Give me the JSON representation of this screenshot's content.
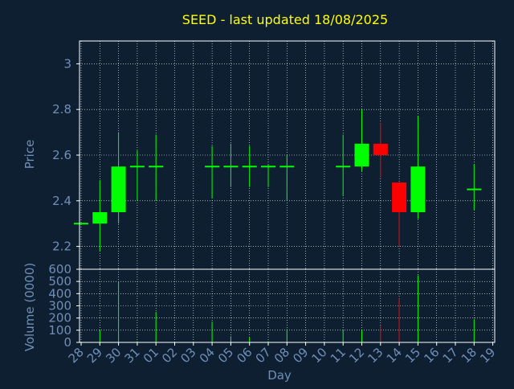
{
  "colors": {
    "background": "#0f1f32",
    "axis": "#ffffff",
    "grid": "#ffffff",
    "label": "#6f8fb8",
    "title": "#ffff00",
    "up": "#00ff00",
    "down": "#ff0000"
  },
  "chart_data": [
    {
      "type": "candlestick",
      "title": "SEED - last updated 18/08/2025",
      "ylabel": "Price",
      "ylim": [
        2.1,
        3.1
      ],
      "y_ticks": [
        "2.2",
        "2.4",
        "2.6",
        "2.8",
        "3"
      ],
      "y_tick_values": [
        2.2,
        2.4,
        2.6,
        2.8,
        3.0
      ],
      "grid": true,
      "candles": [
        {
          "day": "28",
          "open": 2.3,
          "high": 2.3,
          "low": 2.3,
          "close": 2.3
        },
        {
          "day": "29",
          "open": 2.3,
          "high": 2.49,
          "low": 2.18,
          "close": 2.35
        },
        {
          "day": "30",
          "open": 2.35,
          "high": 2.7,
          "low": 2.3,
          "close": 2.55
        },
        {
          "day": "31",
          "open": 2.55,
          "high": 2.62,
          "low": 2.4,
          "close": 2.55
        },
        {
          "day": "01",
          "open": 2.55,
          "high": 2.69,
          "low": 2.4,
          "close": 2.55
        },
        {
          "day": "04",
          "open": 2.55,
          "high": 2.64,
          "low": 2.41,
          "close": 2.55
        },
        {
          "day": "05",
          "open": 2.55,
          "high": 2.65,
          "low": 2.46,
          "close": 2.55
        },
        {
          "day": "06",
          "open": 2.55,
          "high": 2.64,
          "low": 2.46,
          "close": 2.55
        },
        {
          "day": "07",
          "open": 2.55,
          "high": 2.56,
          "low": 2.46,
          "close": 2.55
        },
        {
          "day": "08",
          "open": 2.55,
          "high": 2.6,
          "low": 2.4,
          "close": 2.55
        },
        {
          "day": "11",
          "open": 2.55,
          "high": 2.69,
          "low": 2.42,
          "close": 2.55
        },
        {
          "day": "12",
          "open": 2.55,
          "high": 2.8,
          "low": 2.53,
          "close": 2.65
        },
        {
          "day": "13",
          "open": 2.65,
          "high": 2.74,
          "low": 2.5,
          "close": 2.6
        },
        {
          "day": "14",
          "open": 2.48,
          "high": 2.48,
          "low": 2.2,
          "close": 2.35
        },
        {
          "day": "15",
          "open": 2.35,
          "high": 2.77,
          "low": 2.32,
          "close": 2.55
        },
        {
          "day": "18",
          "open": 2.45,
          "high": 2.56,
          "low": 2.36,
          "close": 2.45
        }
      ]
    },
    {
      "type": "bar",
      "ylabel": "Volume (0000)",
      "xlabel": "Day",
      "ylim": [
        0,
        600
      ],
      "y_ticks": [
        "0",
        "100",
        "200",
        "300",
        "400",
        "500",
        "600"
      ],
      "y_tick_values": [
        0,
        100,
        200,
        300,
        400,
        500,
        600
      ],
      "categories": [
        "28",
        "29",
        "30",
        "31",
        "01",
        "02",
        "03",
        "04",
        "05",
        "06",
        "07",
        "08",
        "09",
        "10",
        "11",
        "12",
        "13",
        "14",
        "15",
        "16",
        "17",
        "18",
        "19"
      ],
      "values": [
        {
          "day": "28",
          "value": 0,
          "dir": "up"
        },
        {
          "day": "29",
          "value": 100,
          "dir": "up"
        },
        {
          "day": "30",
          "value": 500,
          "dir": "up"
        },
        {
          "day": "31",
          "value": 10,
          "dir": "up"
        },
        {
          "day": "01",
          "value": 250,
          "dir": "up"
        },
        {
          "day": "04",
          "value": 170,
          "dir": "up"
        },
        {
          "day": "05",
          "value": 50,
          "dir": "up"
        },
        {
          "day": "06",
          "value": 40,
          "dir": "up"
        },
        {
          "day": "07",
          "value": 10,
          "dir": "up"
        },
        {
          "day": "08",
          "value": 110,
          "dir": "up"
        },
        {
          "day": "11",
          "value": 100,
          "dir": "up"
        },
        {
          "day": "12",
          "value": 100,
          "dir": "up"
        },
        {
          "day": "13",
          "value": 140,
          "dir": "down"
        },
        {
          "day": "14",
          "value": 360,
          "dir": "down"
        },
        {
          "day": "15",
          "value": 550,
          "dir": "up"
        },
        {
          "day": "18",
          "value": 190,
          "dir": "up"
        }
      ]
    }
  ]
}
